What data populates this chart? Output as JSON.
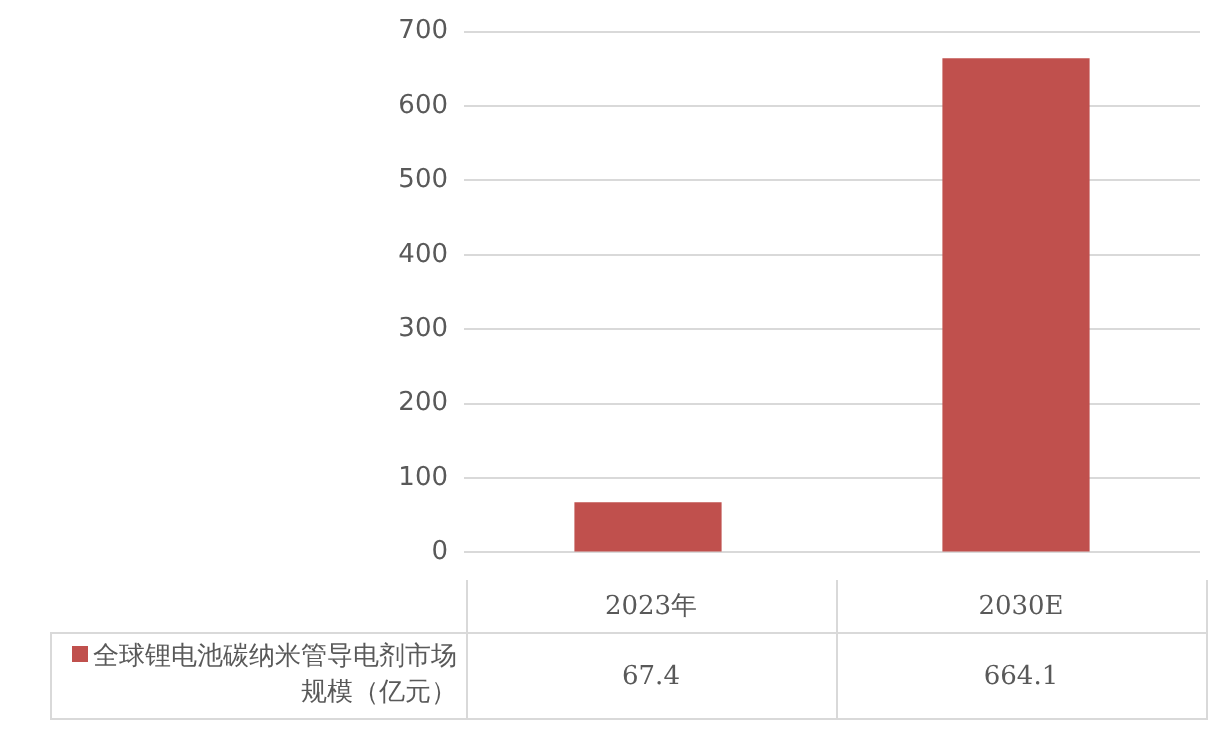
{
  "chart_data": {
    "type": "bar",
    "categories": [
      "2023年",
      "2030E"
    ],
    "series": [
      {
        "name": "全球锂电池碳纳米管导电剂市场规模（亿元）",
        "color": "#c0504d",
        "values": [
          67.4,
          664.1
        ]
      }
    ],
    "ylim": [
      0,
      700
    ],
    "yticks": [
      0,
      100,
      200,
      300,
      400,
      500,
      600,
      700
    ],
    "grid": "y",
    "data_labels": true,
    "legend": "bottom left"
  }
}
